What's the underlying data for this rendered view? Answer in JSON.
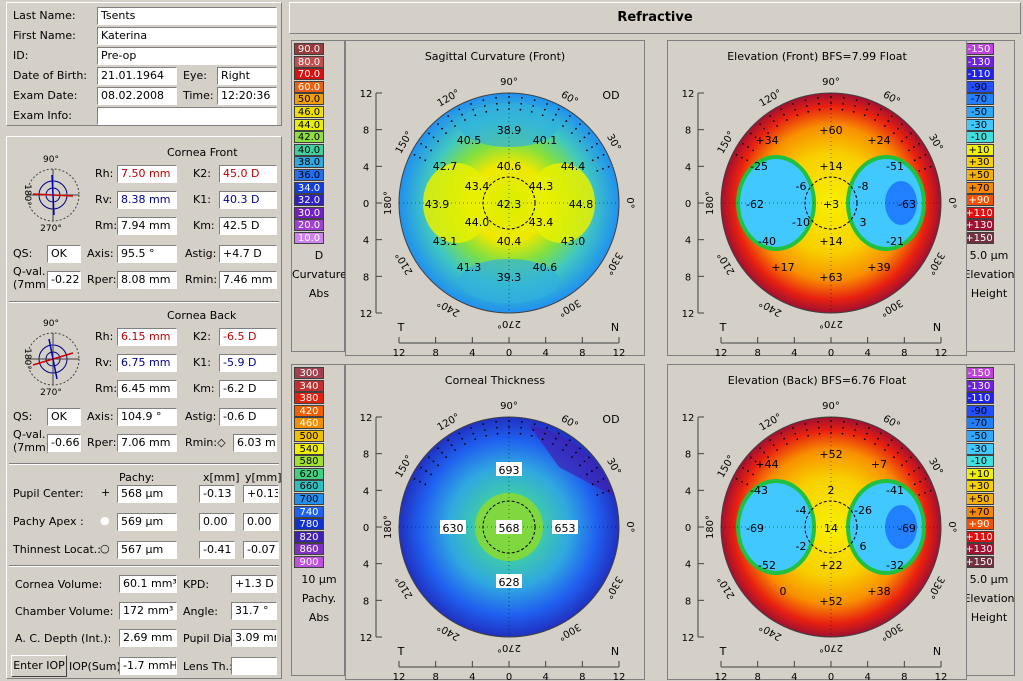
{
  "patient": {
    "last_name_label": "Last Name:",
    "last_name": "Tsents",
    "first_name_label": "First Name:",
    "first_name": "Katerina",
    "id_label": "ID:",
    "id": "Pre-op",
    "dob_label": "Date of Birth:",
    "dob": "21.01.1964",
    "eye_label": "Eye:",
    "eye": "Right",
    "exam_date_label": "Exam Date:",
    "exam_date": "08.02.2008",
    "time_label": "Time:",
    "time": "12:20:36",
    "exam_info_label": "Exam Info:",
    "exam_info": ""
  },
  "cornea_front": {
    "title": "Cornea Front",
    "rh_label": "Rh:",
    "rh": "7.50 mm",
    "k2_label": "K2:",
    "k2": "45.0 D",
    "rv_label": "Rv:",
    "rv": "8.38 mm",
    "k1_label": "K1:",
    "k1": "40.3 D",
    "rm_label": "Rm:",
    "rm": "7.94 mm",
    "km_label": "Km:",
    "km": "42.5 D",
    "qs_label": "QS:",
    "qs": "OK",
    "axis_label": "Axis:",
    "axis": "95.5 °",
    "astig_label": "Astig:",
    "astig": "+4.7 D",
    "qval_label1": "Q-val.",
    "qval_label2": "(7mm)",
    "qval": "-0.22",
    "rper_label": "Rper:",
    "rper": "8.08 mm",
    "rmin_label": "Rmin:",
    "rmin": "7.46 mm",
    "dial_top": "90°",
    "dial_left": "180°",
    "dial_bottom": "270°"
  },
  "cornea_back": {
    "title": "Cornea Back",
    "rh_label": "Rh:",
    "rh": "6.15 mm",
    "k2_label": "K2:",
    "k2": "-6.5 D",
    "rv_label": "Rv:",
    "rv": "6.75 mm",
    "k1_label": "K1:",
    "k1": "-5.9 D",
    "rm_label": "Rm:",
    "rm": "6.45 mm",
    "km_label": "Km:",
    "km": "-6.2 D",
    "qs_label": "QS:",
    "qs": "OK",
    "axis_label": "Axis:",
    "axis": "104.9 °",
    "astig_label": "Astig:",
    "astig": "-0.6 D",
    "qval_label1": "Q-val.",
    "qval_label2": "(7mm)",
    "qval": "-0.66",
    "rper_label": "Rper:",
    "rper": "7.06 mm",
    "rmin_label": "Rmin:◇",
    "rmin": "6.03 mm",
    "dial_top": "90°",
    "dial_left": "180°",
    "dial_bottom": "270°"
  },
  "pachy_table": {
    "col_pachy": "Pachy:",
    "col_x": "x[mm]",
    "col_y": "y[mm]",
    "rows": [
      {
        "label": "Pupil Center:",
        "marker": "+",
        "pachy": "568 µm",
        "x": "-0.13",
        "y": "+0.13"
      },
      {
        "label": "Pachy Apex :",
        "marker": "●",
        "pachy": "569 µm",
        "x": "0.00",
        "y": "0.00"
      },
      {
        "label": "Thinnest Locat.:",
        "marker": "○",
        "pachy": "567 µm",
        "x": "-0.41",
        "y": "-0.07"
      }
    ]
  },
  "volumes": {
    "cornea_volume_label": "Cornea Volume:",
    "cornea_volume": "60.1 mm³",
    "kpd_label": "KPD:",
    "kpd": "+1.3 D",
    "chamber_volume_label": "Chamber Volume:",
    "chamber_volume": "172 mm³",
    "angle_label": "Angle:",
    "angle": "31.7 °",
    "ac_depth_label": "A. C. Depth (Int.):",
    "ac_depth": "2.69 mm",
    "pupil_dia_label": "Pupil Dia:",
    "pupil_dia": "3.09 mm",
    "enter_iop": "Enter IOP",
    "iop_sum_label": "IOP(Sum):",
    "iop_sum": "-1.7 mmHg",
    "lens_th_label": "Lens Th.:",
    "lens_th": ""
  },
  "header": {
    "title": "Refractive"
  },
  "maps": {
    "sagittal": {
      "title": "Sagittal Curvature (Front)",
      "eye": "OD",
      "t": "T",
      "n": "N",
      "values": [
        "38.9",
        "40.5",
        "40.1",
        "42.7",
        "40.6",
        "44.4",
        "43.4",
        "44.3",
        "43.9",
        "42.3",
        "44.8",
        "44.0",
        "43.4",
        "43.1",
        "40.4",
        "43.0",
        "41.3",
        "40.6",
        "39.3"
      ]
    },
    "elev_front": {
      "title": "Elevation (Front)  BFS=7.99 Float",
      "t": "T",
      "n": "N",
      "values": [
        "+60",
        "+34",
        "+24",
        "-25",
        "+14",
        "-51",
        "-6",
        "-8",
        "-62",
        "+3",
        "-63",
        "-10",
        "3",
        "-40",
        "+14",
        "-21",
        "+17",
        "+39",
        "+63"
      ]
    },
    "thickness": {
      "title": "Corneal Thickness",
      "eye": "OD",
      "t": "T",
      "n": "N",
      "values": [
        "693",
        "630",
        "568",
        "653",
        "628"
      ]
    },
    "elev_back": {
      "title": "Elevation (Back)  BFS=6.76 Float",
      "t": "T",
      "n": "N",
      "values": [
        "+52",
        "+44",
        "+7",
        "-43",
        "2",
        "-41",
        "-4",
        "-26",
        "-69",
        "14",
        "-69",
        "-2",
        "6",
        "-52",
        "+22",
        "-32",
        "0",
        "+38",
        "+52"
      ]
    }
  },
  "polar_labels": {
    "deg90": "90°",
    "deg120": "120°",
    "deg60": "60°",
    "deg150": "150°",
    "deg30": "30°",
    "deg180": "180°",
    "deg0": "0°",
    "deg210": "210°",
    "deg330": "330°",
    "deg240": "240°",
    "deg300": "300°",
    "deg270": "270°"
  },
  "axis_ticks": {
    "y": [
      "12",
      "8",
      "4",
      "0",
      "4",
      "8",
      "12"
    ],
    "x": [
      "12",
      "8",
      "4",
      "0",
      "4",
      "8",
      "12"
    ]
  },
  "scales": {
    "curvature": {
      "values": [
        "90.0",
        "80.0",
        "70.0",
        "60.0",
        "50.0",
        "46.0",
        "44.0",
        "42.0",
        "40.0",
        "38.0",
        "36.0",
        "34.0",
        "32.0",
        "30.0",
        "20.0",
        "10.0"
      ],
      "colors": [
        "#9a3a3a",
        "#c05050",
        "#d81010",
        "#e86010",
        "#f0a000",
        "#f0e000",
        "#e8f000",
        "#90e040",
        "#40d0a0",
        "#30a8e0",
        "#2070f0",
        "#1040e0",
        "#3020c0",
        "#7020c0",
        "#a040d0",
        "#d080f0"
      ],
      "unit": "D",
      "name": "Curvature",
      "mode": "Abs"
    },
    "elevation_front": {
      "values": [
        "-150",
        "-130",
        "-110",
        "-90",
        "-70",
        "-50",
        "-30",
        "-10",
        "+10",
        "+30",
        "+50",
        "+70",
        "+90",
        "+110",
        "+130",
        "+150"
      ],
      "colors": [
        "#c040e0",
        "#7020e0",
        "#2020f0",
        "#2050ff",
        "#2080ff",
        "#30a8ff",
        "#40c8ff",
        "#40e0e0",
        "#f0f000",
        "#f8d000",
        "#f8b000",
        "#f88800",
        "#f85000",
        "#e01010",
        "#a01030",
        "#703040"
      ],
      "step": "5.0 µm",
      "name": "Elevation",
      "mode": "Height"
    },
    "pachy": {
      "values": [
        "300",
        "340",
        "380",
        "420",
        "460",
        "500",
        "540",
        "580",
        "620",
        "660",
        "700",
        "740",
        "780",
        "820",
        "860",
        "900"
      ],
      "colors": [
        "#a04050",
        "#c03030",
        "#e02010",
        "#f06000",
        "#f09000",
        "#f0c000",
        "#f0f000",
        "#a0e030",
        "#40d080",
        "#30c0c0",
        "#2090f0",
        "#2060f0",
        "#1030d0",
        "#4020b0",
        "#8030c0",
        "#c050e0"
      ],
      "step": "10 µm",
      "name": "Pachy.",
      "mode": "Abs"
    },
    "elevation_back": {
      "values": [
        "-150",
        "-130",
        "-110",
        "-90",
        "-70",
        "-50",
        "-30",
        "-10",
        "+10",
        "+30",
        "+50",
        "+70",
        "+90",
        "+110",
        "+130",
        "+150"
      ],
      "colors": [
        "#c040e0",
        "#7020e0",
        "#2020f0",
        "#2050ff",
        "#2080ff",
        "#30a8ff",
        "#40c8ff",
        "#40e0e0",
        "#f0f000",
        "#f8d000",
        "#f8b000",
        "#f88800",
        "#f85000",
        "#e01010",
        "#a01030",
        "#703040"
      ],
      "step": "5.0 µm",
      "name": "Elevation",
      "mode": "Height"
    }
  }
}
